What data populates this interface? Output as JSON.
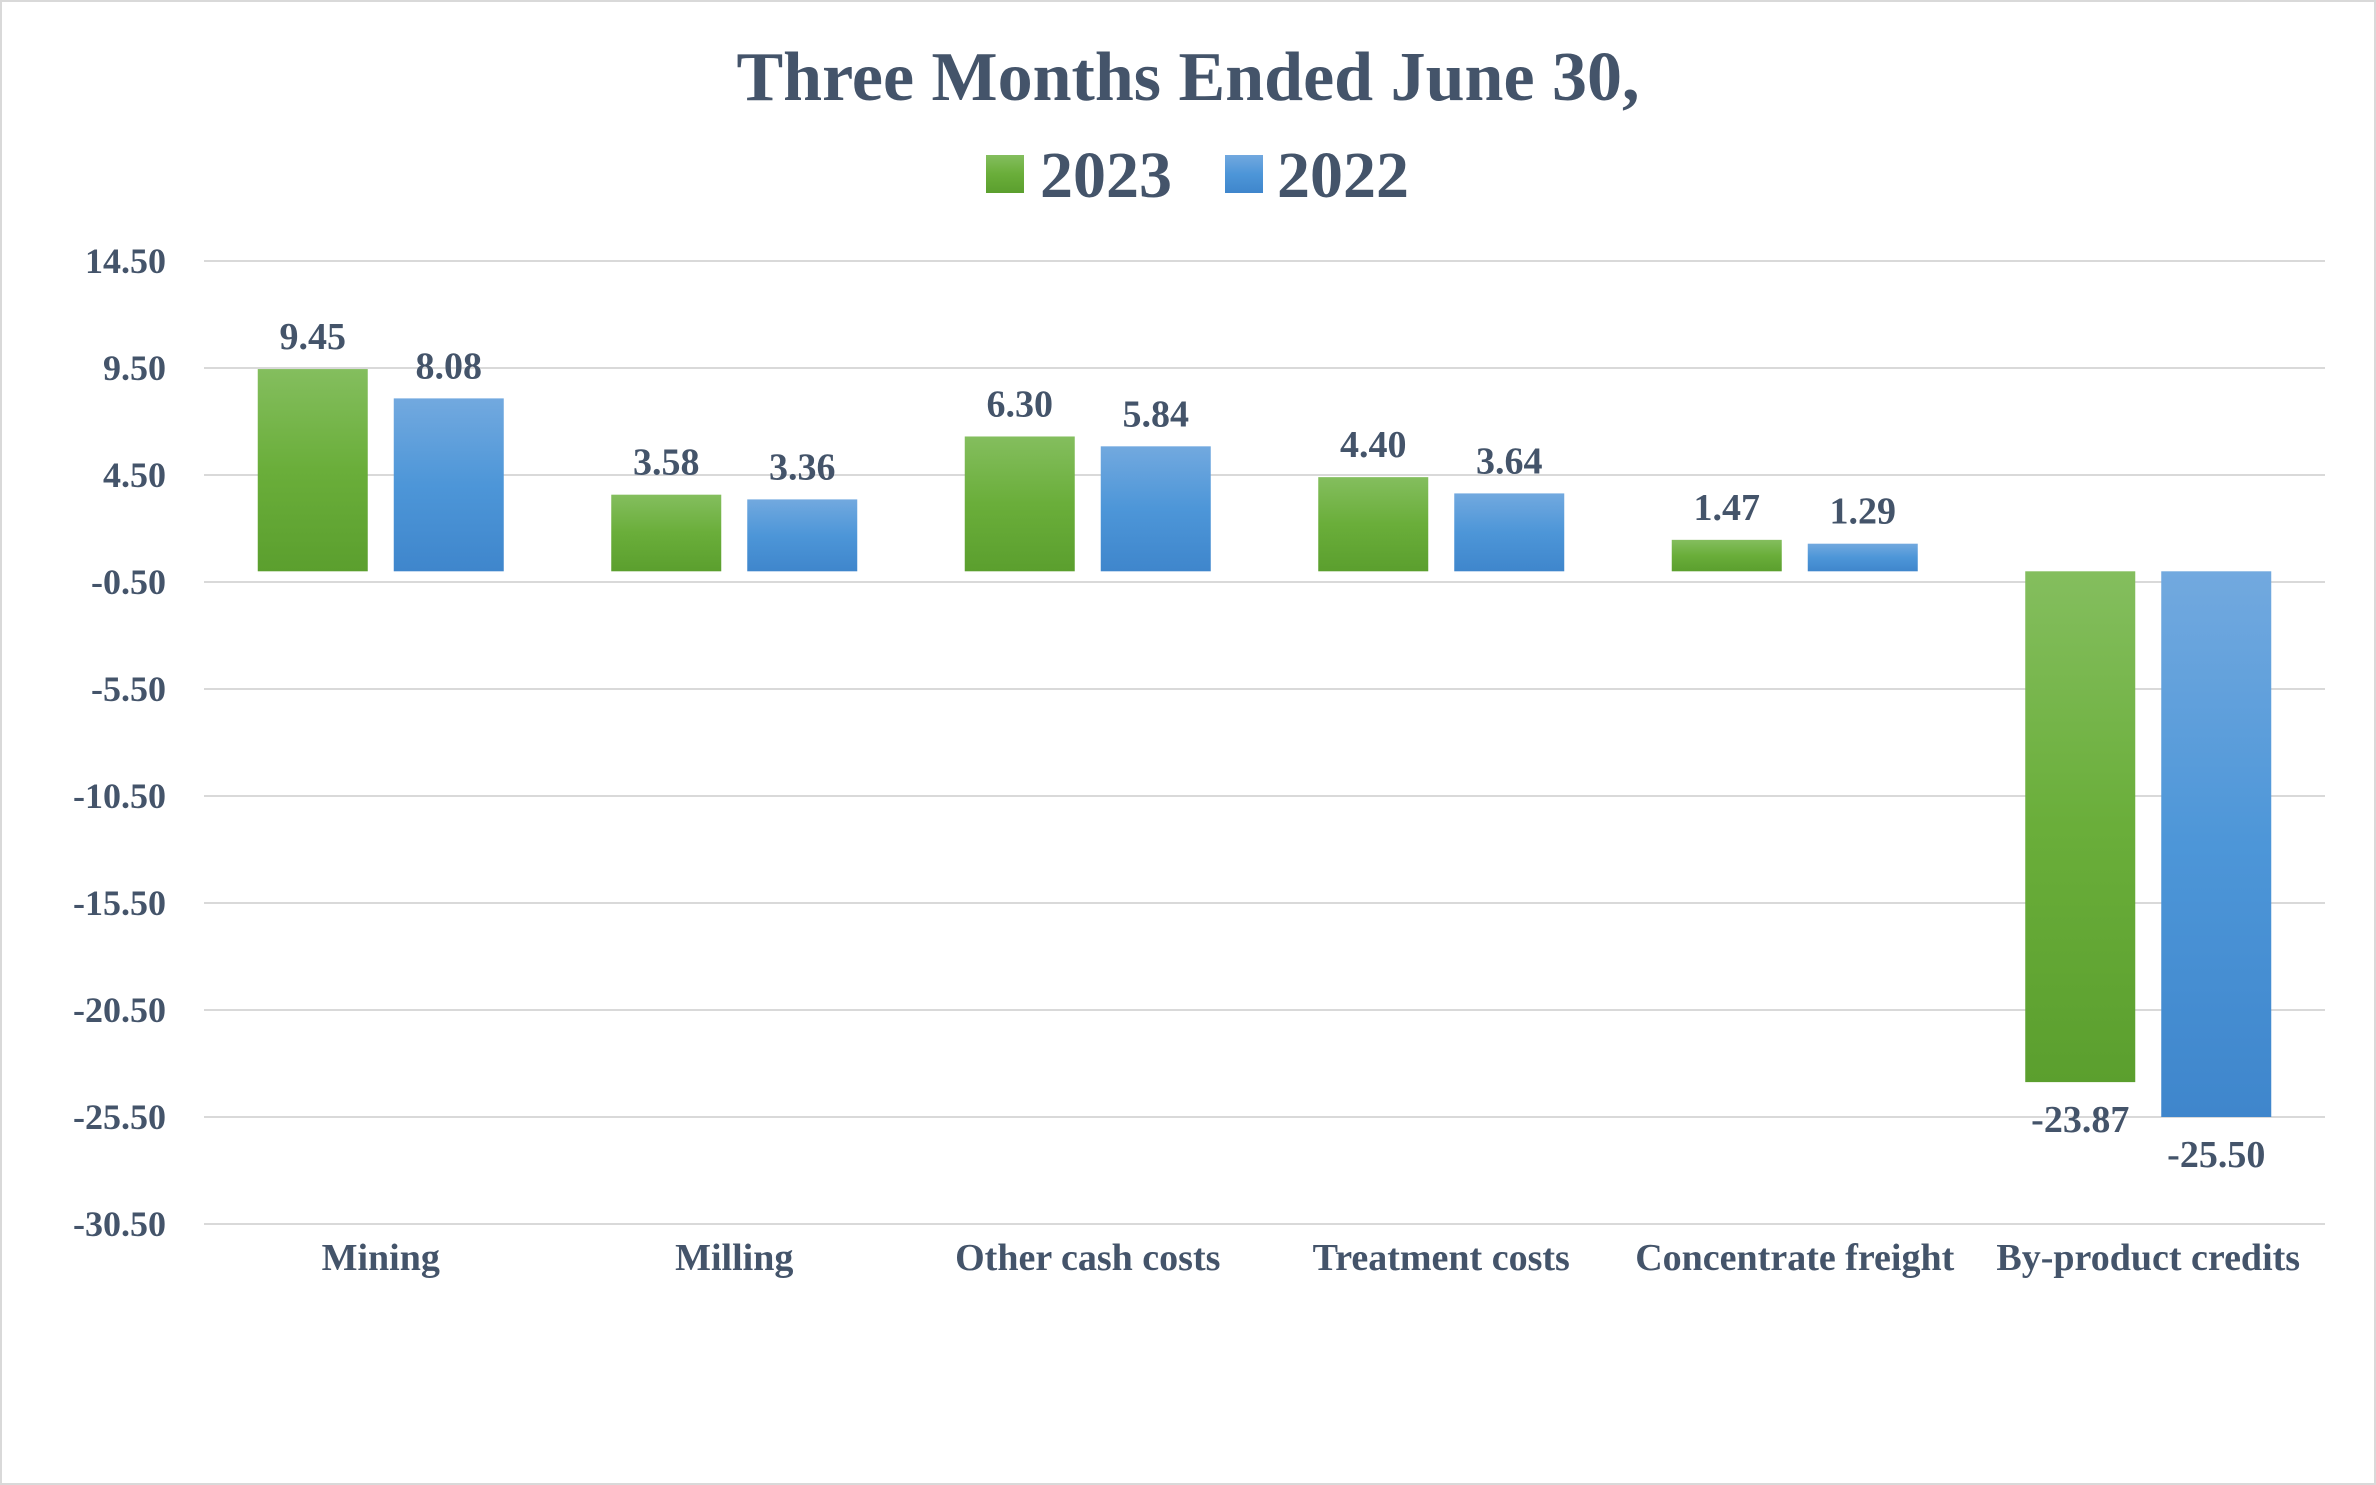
{
  "chart_data": {
    "type": "bar",
    "title": "Three Months Ended June 30,",
    "categories": [
      "Mining",
      "Milling",
      "Other cash costs",
      "Treatment costs",
      "Concentrate freight",
      "By-product credits"
    ],
    "series": [
      {
        "name": "2023",
        "values": [
          9.45,
          3.58,
          6.3,
          4.4,
          1.47,
          -23.87
        ],
        "labels": [
          "9.45",
          "3.58",
          "6.30",
          "4.40",
          "1.47",
          "-23.87"
        ],
        "color": "#6aae3a"
      },
      {
        "name": "2022",
        "values": [
          8.08,
          3.36,
          5.84,
          3.64,
          1.29,
          -25.5
        ],
        "labels": [
          "8.08",
          "3.36",
          "5.84",
          "3.64",
          "1.29",
          "-25.50"
        ],
        "color": "#4a90d4"
      }
    ],
    "yticks": [
      "14.50",
      "9.50",
      "4.50",
      "-0.50",
      "-5.50",
      "-10.50",
      "-15.50",
      "-20.50",
      "-25.50",
      "-30.50"
    ],
    "ylim": [
      -30.5,
      14.5
    ],
    "grid": true,
    "legend_position": "top-center",
    "xlabel": "",
    "ylabel": ""
  }
}
